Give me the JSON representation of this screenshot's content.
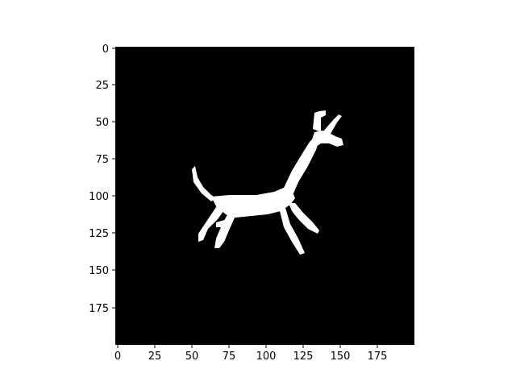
{
  "figure": {
    "background": "#ffffff",
    "image_background": "#000000",
    "foreground": "#ffffff",
    "content": "white silhouette of a four-legged animal with a raised tail and an antlered/eared head, on black"
  },
  "axes": {
    "x_ticks": [
      "0",
      "25",
      "50",
      "75",
      "100",
      "125",
      "150",
      "175"
    ],
    "y_ticks": [
      "0",
      "25",
      "50",
      "75",
      "100",
      "125",
      "150",
      "175"
    ]
  }
}
